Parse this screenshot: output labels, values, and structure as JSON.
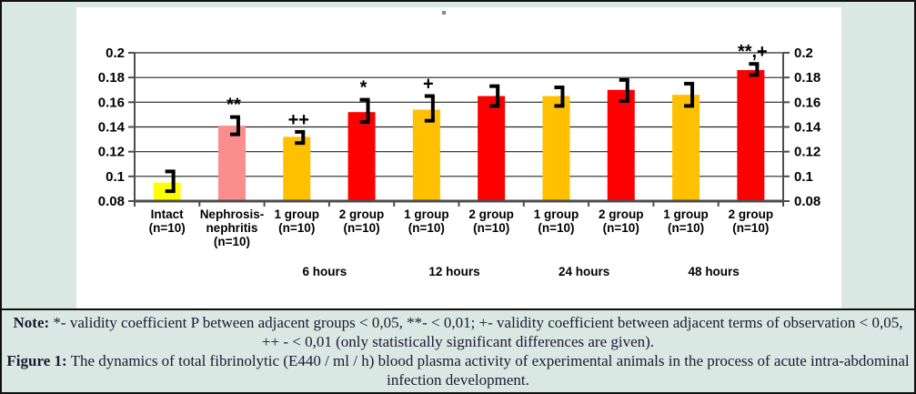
{
  "chart_data": {
    "type": "bar",
    "title": "",
    "xlabel": "",
    "ylabel": "",
    "ylim": [
      0.08,
      0.2
    ],
    "grid": true,
    "y_ticks": [
      0.2,
      0.18,
      0.16,
      0.14,
      0.12,
      0.1,
      0.08
    ],
    "y_tick_labels": [
      "0.2",
      "0.18",
      "0.16",
      "0.14",
      "0.12",
      "0.1",
      "0.08"
    ],
    "categories": [
      "Intact\n(n=10)",
      "Nephrosis-\nnephritis\n(n=10)",
      "1 group\n(n=10)",
      "2 group\n(n=10)",
      "1 group\n(n=10)",
      "2 group\n(n=10)",
      "1 group\n(n=10)",
      "2 group\n(n=10)",
      "1 group\n(n=10)",
      "2 group\n(n=10)"
    ],
    "values": [
      0.095,
      0.141,
      0.132,
      0.152,
      0.154,
      0.165,
      0.165,
      0.17,
      0.166,
      0.186
    ],
    "error_low": [
      0.088,
      0.134,
      0.127,
      0.144,
      0.145,
      0.157,
      0.157,
      0.161,
      0.157,
      0.182
    ],
    "error_high": [
      0.104,
      0.148,
      0.136,
      0.162,
      0.165,
      0.173,
      0.172,
      0.178,
      0.175,
      0.191
    ],
    "bar_colors": [
      "#ffff00",
      "#fb8d8d",
      "#ffc000",
      "#ff0000",
      "#ffc000",
      "#ff0000",
      "#ffc000",
      "#ff0000",
      "#ffc000",
      "#ff0000"
    ],
    "significance": [
      "",
      "**",
      "++",
      "*",
      "+",
      "",
      "",
      "",
      "",
      "**,+"
    ],
    "time_labels": [
      {
        "label": "6 hours",
        "between": [
          2,
          3
        ]
      },
      {
        "label": "12 hours",
        "between": [
          4,
          5
        ]
      },
      {
        "label": "24 hours",
        "between": [
          6,
          7
        ]
      },
      {
        "label": "48 hours",
        "between": [
          8,
          9
        ]
      }
    ],
    "legend": null
  },
  "caption": {
    "note_prefix": "Note:",
    "note_text": " *- validity coefficient P between adjacent groups < 0,05, **- < 0,01; +- validity coefficient between adjacent terms of observation < 0,05, ++ - < 0,01 (only statistically significant differences are given).",
    "figure_prefix": "Figure 1:",
    "figure_text": " The dynamics of total fibrinolytic (E440 / ml / h) blood plasma activity of experimental animals in the process of acute intra-abdominal infection development."
  },
  "colors": {
    "background": "#d9e8e2",
    "plot_background": "#ffffff",
    "axis": "#4d4d4d",
    "gridline": "#262626",
    "label_text": "#000000",
    "caption_text": "#1a1a33",
    "stray_mark": "#8a8a8a"
  }
}
